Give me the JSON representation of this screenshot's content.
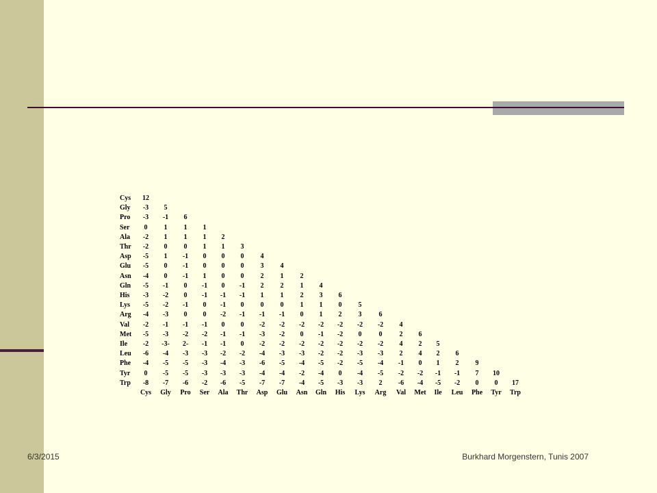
{
  "matrix": {
    "row_labels": [
      "Cys",
      "Gly",
      "Pro",
      "Ser",
      "Ala",
      "Thr",
      "Asp",
      "Glu",
      "Asn",
      "Gln",
      "His",
      "Lys",
      "Arg",
      "Val",
      "Met",
      "Ile",
      "Leu",
      "Phe",
      "Tyr",
      "Trp"
    ],
    "column_labels": [
      "Cys",
      "Gly",
      "Pro",
      "Ser",
      "Ala",
      "Thr",
      "Asp",
      "Glu",
      "Asn",
      "Gln",
      "His",
      "Lys",
      "Arg",
      "Val",
      "Met",
      "Ile",
      "Leu",
      "Phe",
      "Tyr",
      "Trp"
    ],
    "rows": [
      [
        "12"
      ],
      [
        "-3",
        "5"
      ],
      [
        "-3",
        "-1",
        "6"
      ],
      [
        "0",
        "1",
        "1",
        "1"
      ],
      [
        "-2",
        "1",
        "1",
        "1",
        "2"
      ],
      [
        "-2",
        "0",
        "0",
        "1",
        "1",
        "3"
      ],
      [
        "-5",
        "1",
        "-1",
        "0",
        "0",
        "0",
        "4"
      ],
      [
        "-5",
        "0",
        "-1",
        "0",
        "0",
        "0",
        "3",
        "4"
      ],
      [
        "-4",
        "0",
        "-1",
        "1",
        "0",
        "0",
        "2",
        "1",
        "2"
      ],
      [
        "-5",
        "-1",
        "0",
        "-1",
        "0",
        "-1",
        "2",
        "2",
        "1",
        "4"
      ],
      [
        "-3",
        "-2",
        "0",
        "-1",
        "-1",
        "-1",
        "1",
        "1",
        "2",
        "3",
        "6"
      ],
      [
        "-5",
        "-2",
        "-1",
        "0",
        "-1",
        "0",
        "0",
        "0",
        "1",
        "1",
        "0",
        "5"
      ],
      [
        "-4",
        "-3",
        "0",
        "0",
        "-2",
        "-1",
        "-1",
        "-1",
        "0",
        "1",
        "2",
        "3",
        "6"
      ],
      [
        "-2",
        "-1",
        "-1",
        "-1",
        "0",
        "0",
        "-2",
        "-2",
        "-2",
        "-2",
        "-2",
        "-2",
        "-2",
        "4"
      ],
      [
        "-5",
        "-3",
        "-2",
        "-2",
        "-1",
        "-1",
        "-3",
        "-2",
        "0",
        "-1",
        "-2",
        "0",
        "0",
        "2",
        "6"
      ],
      [
        "-2",
        "-3-",
        "2-",
        "-1",
        "-1",
        "0",
        "-2",
        "-2",
        "-2",
        "-2",
        "-2",
        "-2",
        "-2",
        "4",
        "2",
        "5"
      ],
      [
        "-6",
        "-4",
        "-3",
        "-3",
        "-2",
        "-2",
        "-4",
        "-3",
        "-3",
        "-2",
        "-2",
        "-3",
        "-3",
        "2",
        "4",
        "2",
        "6"
      ],
      [
        "-4",
        "-5",
        "-5",
        "-3",
        "-4",
        "-3",
        "-6",
        "-5",
        "-4",
        "-5",
        "-2",
        "-5",
        "-4",
        "-1",
        "0",
        "1",
        "2",
        "9"
      ],
      [
        "0",
        "-5",
        "-5",
        "-3",
        "-3",
        "-3",
        "-4",
        "-4",
        "-2",
        "-4",
        "0",
        "-4",
        "-5",
        "-2",
        "-2",
        "-1",
        "-1",
        "7",
        "10"
      ],
      [
        "-8",
        "-7",
        "-6",
        "-2",
        "-6",
        "-5",
        "-7",
        "-7",
        "-4",
        "-5",
        "-3",
        "-3",
        "2",
        "-6",
        "-4",
        "-5",
        "-2",
        "0",
        "0",
        "17"
      ]
    ]
  },
  "footer": {
    "date": "6/3/2015",
    "author": "Burkhard Morgenstern, Tunis 2007"
  }
}
